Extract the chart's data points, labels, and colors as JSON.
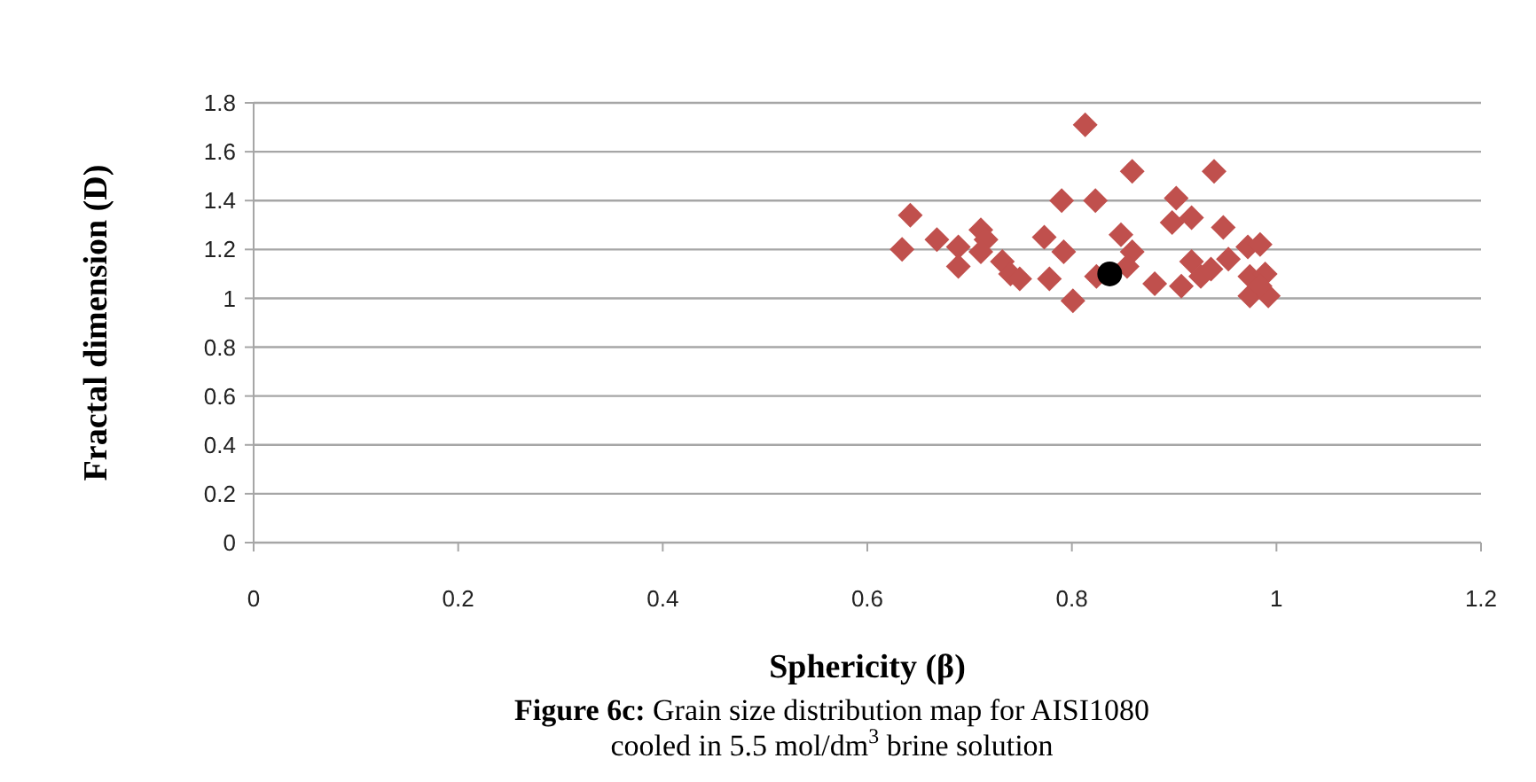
{
  "chart_data": {
    "type": "scatter",
    "xlabel": "Sphericity (β)",
    "ylabel": "Fractal dimension (D)",
    "xlim": [
      0,
      1.2
    ],
    "xticks": [
      0,
      0.2,
      0.4,
      0.6,
      0.8,
      1,
      1.2
    ],
    "ylim": [
      0,
      1.8
    ],
    "yticks": [
      0,
      0.2,
      0.4,
      0.6,
      0.8,
      1,
      1.2,
      1.4,
      1.6,
      1.8
    ],
    "grid": "y",
    "series": [
      {
        "color": "#c0504d",
        "marker": "diamond",
        "x": [
          0.634,
          0.642,
          0.668,
          0.689,
          0.689,
          0.711,
          0.716,
          0.711,
          0.732,
          0.74,
          0.749,
          0.773,
          0.778,
          0.79,
          0.792,
          0.801,
          0.813,
          0.823,
          0.824,
          0.848,
          0.859,
          0.859,
          0.854,
          0.881,
          0.902,
          0.898,
          0.917,
          0.907,
          0.917,
          0.926,
          0.936,
          0.939,
          0.948,
          0.953,
          0.972,
          0.984,
          0.974,
          0.989,
          0.974,
          0.992,
          0.984
        ],
        "values": [
          1.2,
          1.34,
          1.24,
          1.21,
          1.13,
          1.28,
          1.24,
          1.19,
          1.15,
          1.1,
          1.08,
          1.25,
          1.08,
          1.4,
          1.19,
          0.99,
          1.71,
          1.4,
          1.09,
          1.26,
          1.52,
          1.19,
          1.13,
          1.06,
          1.41,
          1.31,
          1.33,
          1.05,
          1.15,
          1.09,
          1.12,
          1.52,
          1.29,
          1.16,
          1.21,
          1.22,
          1.09,
          1.1,
          1.01,
          1.01,
          1.05
        ]
      },
      {
        "color": "#000000",
        "marker": "circle",
        "x": [
          0.837
        ],
        "values": [
          1.1
        ]
      }
    ],
    "annotations": [
      "Figure 6c: Grain size distribution map for AISI1080",
      "cooled in 5.5 mol/dm$^{3}$ brine solution"
    ]
  }
}
